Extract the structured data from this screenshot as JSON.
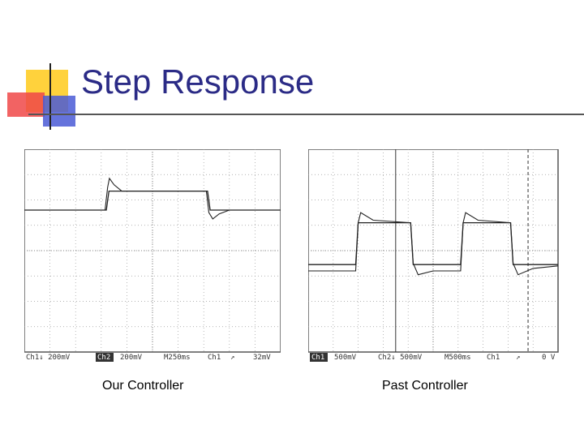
{
  "slide": {
    "title": "Step Response"
  },
  "colors": {
    "title": "#2b2b86",
    "accent_yellow": "#ffd23c",
    "accent_red": "#f04848",
    "accent_blue": "#4a5bd6",
    "trace": "#222222",
    "grid": "#9a9a9a"
  },
  "chart_data": [
    {
      "type": "line",
      "caption": "Our Controller",
      "readout": [
        "Ch1↓ 200mV",
        "Ch2",
        "200mV",
        "M250ms",
        "Ch1",
        "↗",
        "32mV"
      ],
      "divisions": {
        "x": 10,
        "y": 8
      },
      "xlim": [
        0,
        10
      ],
      "ylim": [
        -4,
        4
      ],
      "series": [
        {
          "values": [
            [
              0,
              1.6
            ],
            [
              3.15,
              1.6
            ],
            [
              3.25,
              2.5
            ],
            [
              3.32,
              2.85
            ],
            [
              3.5,
              2.6
            ],
            [
              3.8,
              2.35
            ],
            [
              7.1,
              2.35
            ],
            [
              7.2,
              1.5
            ],
            [
              7.35,
              1.25
            ],
            [
              7.6,
              1.45
            ],
            [
              8,
              1.6
            ],
            [
              10,
              1.6
            ]
          ]
        },
        {
          "values": [
            [
              0,
              1.6
            ],
            [
              3.2,
              1.6
            ],
            [
              3.3,
              2.35
            ],
            [
              7.15,
              2.35
            ],
            [
              7.25,
              1.6
            ],
            [
              10,
              1.6
            ]
          ]
        }
      ]
    },
    {
      "type": "line",
      "caption": "Past Controller",
      "readout": [
        "Ch1",
        "500mV",
        "Ch2↓ 500mV",
        "M500ms",
        "Ch1",
        "↗",
        "0 V"
      ],
      "divisions": {
        "x": 10,
        "y": 8
      },
      "xlim": [
        0,
        10
      ],
      "ylim": [
        -4,
        4
      ],
      "series": [
        {
          "values": [
            [
              0,
              -0.8
            ],
            [
              1.9,
              -0.8
            ],
            [
              2.0,
              1.1
            ],
            [
              2.1,
              1.5
            ],
            [
              2.6,
              1.2
            ],
            [
              4.1,
              1.1
            ],
            [
              4.2,
              -0.5
            ],
            [
              4.4,
              -0.95
            ],
            [
              5.0,
              -0.8
            ],
            [
              6.1,
              -0.8
            ],
            [
              6.2,
              1.1
            ],
            [
              6.3,
              1.5
            ],
            [
              6.8,
              1.2
            ],
            [
              8.1,
              1.1
            ],
            [
              8.2,
              -0.5
            ],
            [
              8.4,
              -0.95
            ],
            [
              9.0,
              -0.7
            ],
            [
              10,
              -0.6
            ]
          ]
        },
        {
          "values": [
            [
              0,
              -0.55
            ],
            [
              1.9,
              -0.55
            ],
            [
              2.0,
              1.1
            ],
            [
              4.1,
              1.1
            ],
            [
              4.2,
              -0.55
            ],
            [
              6.1,
              -0.55
            ],
            [
              6.2,
              1.1
            ],
            [
              8.1,
              1.1
            ],
            [
              8.2,
              -0.55
            ],
            [
              10,
              -0.55
            ]
          ]
        }
      ],
      "cursor_x": [
        3.5,
        8.8
      ]
    }
  ]
}
